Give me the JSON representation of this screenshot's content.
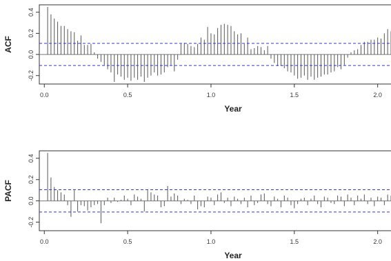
{
  "colors": {
    "bars": "#555555",
    "confidence_band": "#3333cc",
    "zero_line": "#777777"
  },
  "chart_data": [
    {
      "type": "bar",
      "ylabel": "ACF",
      "xlabel": "Year",
      "xlim": [
        -0.03,
        2.08
      ],
      "ylim": [
        -0.28,
        0.47
      ],
      "xticks": [
        "0.0",
        "0.5",
        "1.0",
        "1.5",
        "2.0"
      ],
      "yticks": [
        "0.4",
        "0.2",
        "0.0",
        "-0.2"
      ],
      "ytick_values": [
        0.4,
        0.2,
        0.0,
        -0.2
      ],
      "zero_line": 0.0,
      "confidence_band": [
        0.105,
        -0.105
      ],
      "grid": false,
      "x_start": 0.02,
      "x_step": 0.02,
      "values": [
        0.45,
        0.38,
        0.34,
        0.31,
        0.27,
        0.27,
        0.24,
        0.22,
        0.21,
        0.13,
        0.18,
        0.09,
        0.09,
        0.1,
        0.02,
        -0.04,
        -0.07,
        -0.1,
        -0.14,
        -0.17,
        -0.26,
        -0.19,
        -0.21,
        -0.24,
        -0.22,
        -0.25,
        -0.22,
        -0.24,
        -0.21,
        -0.26,
        -0.22,
        -0.2,
        -0.17,
        -0.2,
        -0.19,
        -0.17,
        -0.12,
        -0.1,
        -0.16,
        -0.05,
        0.1,
        0.11,
        0.1,
        0.08,
        0.07,
        0.1,
        0.16,
        0.14,
        0.26,
        0.2,
        0.19,
        0.25,
        0.28,
        0.29,
        0.28,
        0.27,
        0.22,
        0.19,
        0.2,
        0.1,
        0.16,
        0.05,
        0.06,
        0.08,
        0.07,
        0.04,
        0.08,
        -0.04,
        -0.08,
        -0.11,
        -0.11,
        -0.13,
        -0.16,
        -0.17,
        -0.2,
        -0.23,
        -0.22,
        -0.2,
        -0.24,
        -0.21,
        -0.24,
        -0.22,
        -0.21,
        -0.19,
        -0.19,
        -0.17,
        -0.16,
        -0.12,
        -0.14,
        -0.1,
        -0.03,
        0.02,
        0.04,
        0.05,
        0.09,
        0.12,
        0.12,
        0.14,
        0.14,
        0.16,
        0.15,
        0.2,
        0.24,
        0.22,
        0.17
      ]
    },
    {
      "type": "bar",
      "ylabel": "PACF",
      "xlabel": "Year",
      "xlim": [
        -0.03,
        2.08
      ],
      "ylim": [
        -0.28,
        0.47
      ],
      "xticks": [
        "0.0",
        "0.5",
        "1.0",
        "1.5",
        "2.0"
      ],
      "yticks": [
        "0.4",
        "0.2",
        "0.0",
        "-0.2"
      ],
      "ytick_values": [
        0.4,
        0.2,
        0.0,
        -0.2
      ],
      "zero_line": 0.0,
      "confidence_band": [
        0.105,
        -0.105
      ],
      "grid": false,
      "x_start": 0.02,
      "x_step": 0.02,
      "values": [
        0.45,
        0.22,
        0.13,
        0.1,
        0.08,
        0.06,
        -0.04,
        -0.15,
        0.1,
        -0.1,
        -0.04,
        -0.05,
        -0.09,
        -0.06,
        -0.04,
        -0.03,
        -0.21,
        -0.04,
        0.03,
        -0.02,
        0.03,
        -0.01,
        0.01,
        0.05,
        0.02,
        -0.04,
        0.06,
        0.04,
        0.02,
        -0.1,
        0.1,
        0.08,
        0.06,
        0.05,
        -0.06,
        -0.05,
        0.14,
        0.04,
        0.07,
        0.05,
        -0.03,
        0.02,
        0.01,
        -0.03,
        0.05,
        -0.08,
        -0.05,
        -0.06,
        0.04,
        0.03,
        -0.04,
        0.06,
        0.08,
        -0.02,
        0.03,
        -0.05,
        0.04,
        0.02,
        -0.03,
        0.03,
        -0.06,
        0.05,
        -0.04,
        -0.02,
        0.06,
        0.07,
        -0.03,
        -0.05,
        0.04,
        0.02,
        -0.06,
        0.05,
        0.03,
        -0.04,
        -0.07,
        -0.03,
        0.02,
        0.03,
        -0.04,
        0.02,
        0.05,
        -0.03,
        -0.06,
        0.04,
        0.03,
        -0.02,
        -0.03,
        0.05,
        0.04,
        -0.05,
        0.06,
        0.03,
        -0.04,
        0.05,
        0.02,
        0.06,
        -0.03,
        0.03,
        -0.05,
        0.04,
        0.03,
        -0.04,
        0.06,
        0.05,
        -0.03
      ]
    }
  ]
}
